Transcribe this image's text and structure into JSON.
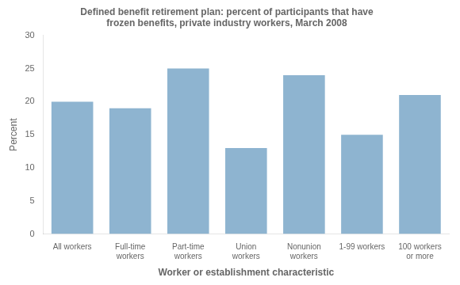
{
  "chart_data": {
    "type": "bar",
    "title": "Defined benefit retirement plan: percent of participants that have\nfrozen benefits, private industry workers, March 2008",
    "categories": [
      "All workers",
      "Full-time\nworkers",
      "Part-time\nworkers",
      "Union\nworkers",
      "Nonunion\nworkers",
      "1-99 workers",
      "100 workers\nor more"
    ],
    "values": [
      20,
      19,
      25,
      13,
      24,
      15,
      21
    ],
    "color": "#8eb4d0",
    "xlabel": "Worker or establishment characteristic",
    "ylabel": "Percent",
    "ylim": [
      0,
      30
    ],
    "yticks": [
      0,
      5,
      10,
      15,
      20,
      25,
      30
    ],
    "grid": false
  }
}
